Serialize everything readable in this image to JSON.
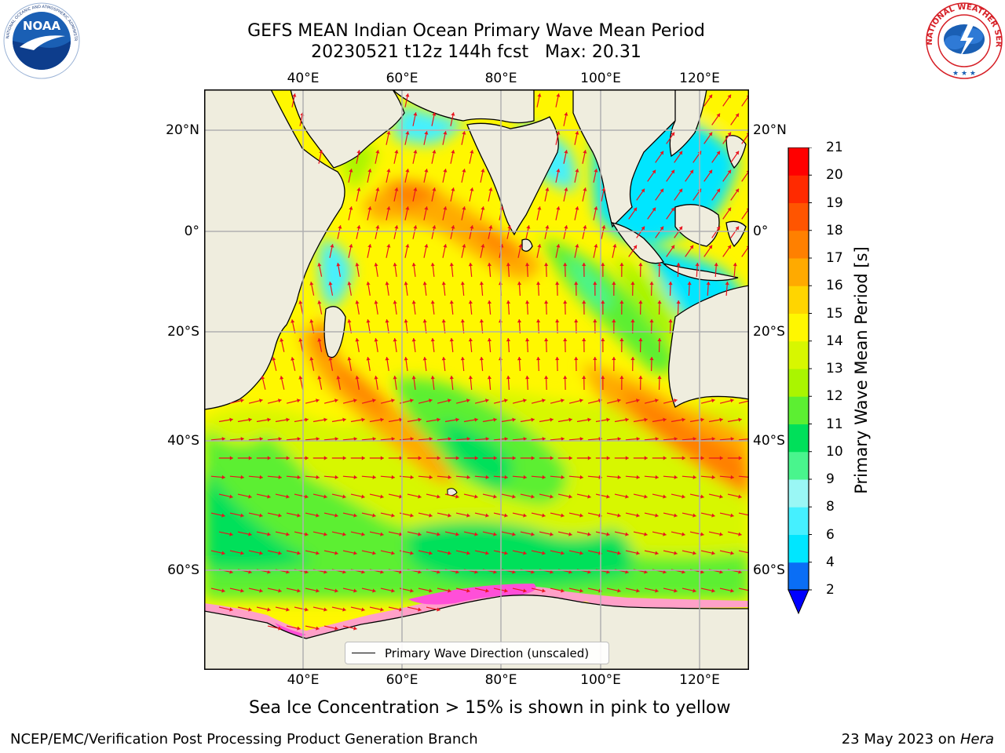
{
  "header": {
    "title_line1": "GEFS MEAN Indian Ocean Primary Wave Mean Period",
    "title_line2": "20230521 t12z 144h fcst   Max: 20.31"
  },
  "logos": {
    "left": {
      "icon": "noaa-logo",
      "text": "NOAA",
      "ring_text": "NATIONAL OCEANIC AND ATMOSPHERIC ADMINISTRATION · U.S. DEPARTMENT OF COMMERCE",
      "color": "#1a5fb4"
    },
    "right": {
      "icon": "nws-logo",
      "ring_text": "NATIONAL WEATHER SERVICE",
      "color": "#d61f26"
    }
  },
  "map": {
    "lon_ticks": [
      "40°E",
      "60°E",
      "80°E",
      "100°E",
      "120°E"
    ],
    "lat_ticks": [
      "20°N",
      "0°",
      "20°S",
      "40°S",
      "60°S"
    ],
    "land_color": "#efedde",
    "ice_colors": [
      "#ff4fd8",
      "#ffa0c8",
      "#ffe060"
    ],
    "arrow_color": "#e8141e",
    "legend_label": "Primary Wave Direction (unscaled)"
  },
  "colorbar": {
    "label": "Primary Wave Mean Period [s]",
    "levels": [
      2,
      4,
      6,
      8,
      9,
      10,
      11,
      12,
      13,
      14,
      15,
      16,
      17,
      18,
      19,
      20,
      21
    ],
    "colors": [
      "#0a6ef5",
      "#00e6ff",
      "#45f0ff",
      "#9af7f5",
      "#49f58d",
      "#00e05a",
      "#5cef32",
      "#aaf500",
      "#d7f700",
      "#fff700",
      "#ffd500",
      "#ffaa00",
      "#ff8000",
      "#ff5500",
      "#ff2a00",
      "#ff0000"
    ],
    "extend_color": "#0000ff"
  },
  "caption": "Sea Ice Concentration > 15% is shown in pink to yellow",
  "footer": {
    "left": "NCEP/EMC/Verification Post Processing Product Generation Branch",
    "date": "23 May 2023 on ",
    "host": "Hera"
  }
}
